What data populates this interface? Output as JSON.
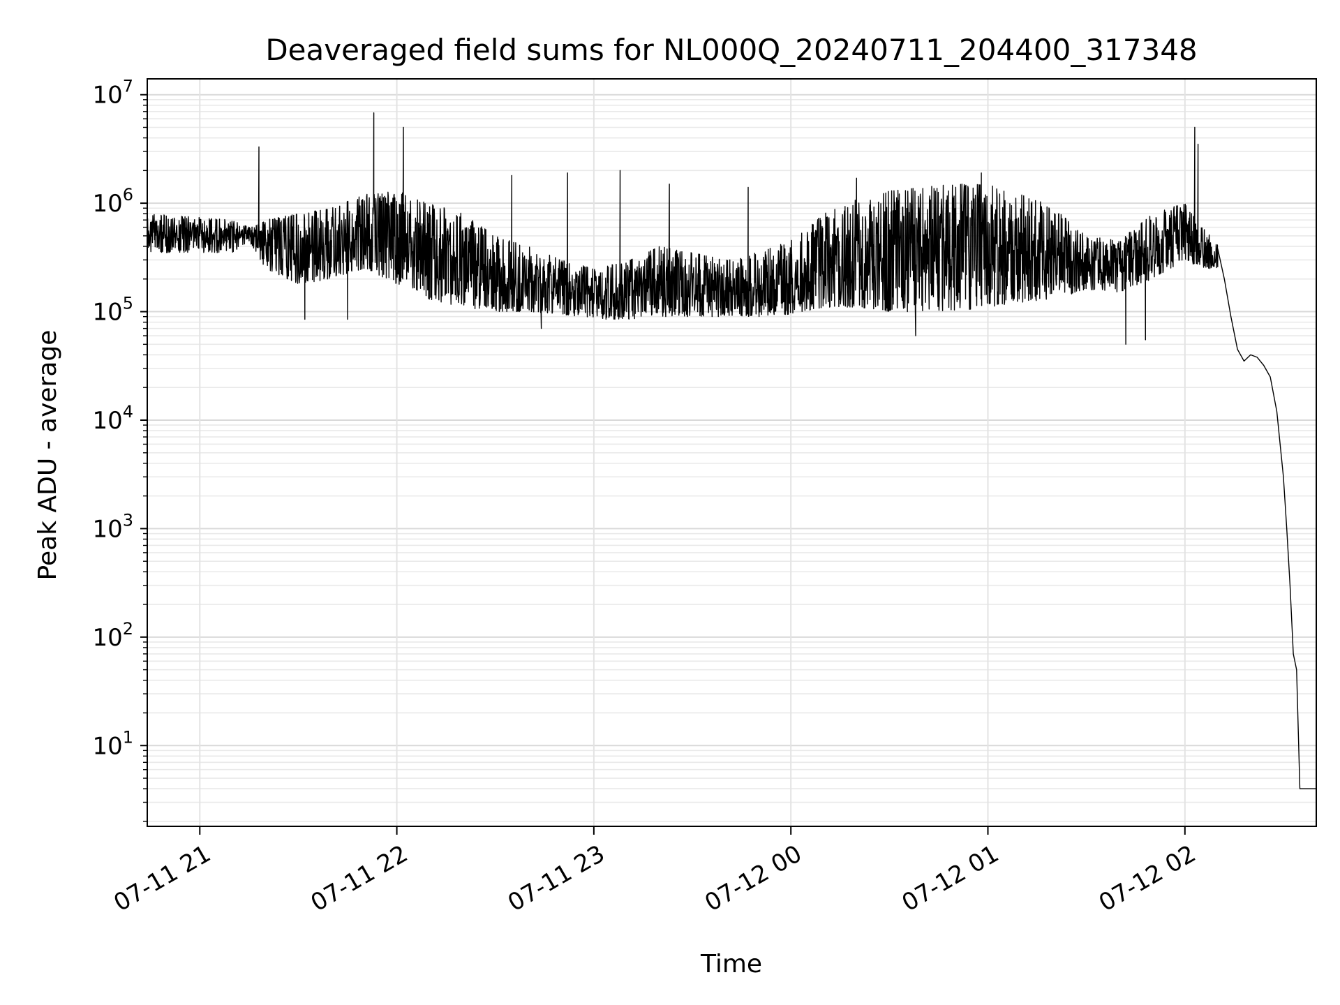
{
  "chart_data": {
    "type": "line",
    "title": "Deaveraged field sums for NL000Q_20240711_204400_317348",
    "xlabel": "Time",
    "ylabel": "Peak ADU - average",
    "yscale": "log",
    "ylim": [
      1.8,
      14000000
    ],
    "xlim": [
      "2024-07-11T20:44:00",
      "2024-07-12T02:40:00"
    ],
    "x_ticks": [
      {
        "t": "2024-07-11T21:00",
        "label": "07-11 21"
      },
      {
        "t": "2024-07-11T22:00",
        "label": "07-11 22"
      },
      {
        "t": "2024-07-11T23:00",
        "label": "07-11 23"
      },
      {
        "t": "2024-07-12T00:00",
        "label": "07-12 00"
      },
      {
        "t": "2024-07-12T01:00",
        "label": "07-12 01"
      },
      {
        "t": "2024-07-12T02:00",
        "label": "07-12 02"
      }
    ],
    "y_ticks": [
      {
        "value": 10,
        "base": "10",
        "exp": "1"
      },
      {
        "value": 100,
        "base": "10",
        "exp": "2"
      },
      {
        "value": 1000,
        "base": "10",
        "exp": "3"
      },
      {
        "value": 10000,
        "base": "10",
        "exp": "4"
      },
      {
        "value": 100000,
        "base": "10",
        "exp": "5"
      },
      {
        "value": 1000000,
        "base": "10",
        "exp": "6"
      },
      {
        "value": 10000000,
        "base": "10",
        "exp": "7"
      }
    ],
    "grid": true,
    "line_color": "#000000",
    "series": [
      {
        "envelope": [
          {
            "t": "2024-07-11T20:44",
            "lo": 350000,
            "hi": 800000
          },
          {
            "t": "2024-07-11T21:10",
            "lo": 350000,
            "hi": 700000
          },
          {
            "t": "2024-07-11T21:15",
            "lo": 450000,
            "hi": 600000
          },
          {
            "t": "2024-07-11T21:20",
            "lo": 250000,
            "hi": 700000
          },
          {
            "t": "2024-07-11T21:30",
            "lo": 180000,
            "hi": 800000
          },
          {
            "t": "2024-07-11T21:40",
            "lo": 200000,
            "hi": 900000
          },
          {
            "t": "2024-07-11T21:50",
            "lo": 250000,
            "hi": 1200000
          },
          {
            "t": "2024-07-11T22:00",
            "lo": 180000,
            "hi": 1300000
          },
          {
            "t": "2024-07-11T22:10",
            "lo": 130000,
            "hi": 1000000
          },
          {
            "t": "2024-07-11T22:20",
            "lo": 110000,
            "hi": 800000
          },
          {
            "t": "2024-07-11T22:30",
            "lo": 100000,
            "hi": 500000
          },
          {
            "t": "2024-07-11T22:40",
            "lo": 100000,
            "hi": 400000
          },
          {
            "t": "2024-07-11T22:50",
            "lo": 95000,
            "hi": 300000
          },
          {
            "t": "2024-07-11T23:00",
            "lo": 85000,
            "hi": 250000
          },
          {
            "t": "2024-07-11T23:10",
            "lo": 85000,
            "hi": 300000
          },
          {
            "t": "2024-07-11T23:20",
            "lo": 90000,
            "hi": 400000
          },
          {
            "t": "2024-07-11T23:30",
            "lo": 90000,
            "hi": 350000
          },
          {
            "t": "2024-07-11T23:40",
            "lo": 90000,
            "hi": 300000
          },
          {
            "t": "2024-07-11T23:50",
            "lo": 90000,
            "hi": 350000
          },
          {
            "t": "2024-07-12T00:00",
            "lo": 95000,
            "hi": 450000
          },
          {
            "t": "2024-07-12T00:10",
            "lo": 110000,
            "hi": 800000
          },
          {
            "t": "2024-07-12T00:20",
            "lo": 110000,
            "hi": 1100000
          },
          {
            "t": "2024-07-12T00:30",
            "lo": 100000,
            "hi": 1300000
          },
          {
            "t": "2024-07-12T00:40",
            "lo": 100000,
            "hi": 1400000
          },
          {
            "t": "2024-07-12T00:50",
            "lo": 100000,
            "hi": 1500000
          },
          {
            "t": "2024-07-12T01:00",
            "lo": 110000,
            "hi": 1500000
          },
          {
            "t": "2024-07-12T01:10",
            "lo": 120000,
            "hi": 1300000
          },
          {
            "t": "2024-07-12T01:20",
            "lo": 130000,
            "hi": 900000
          },
          {
            "t": "2024-07-12T01:30",
            "lo": 160000,
            "hi": 500000
          },
          {
            "t": "2024-07-12T01:40",
            "lo": 150000,
            "hi": 450000
          },
          {
            "t": "2024-07-12T01:50",
            "lo": 200000,
            "hi": 800000
          },
          {
            "t": "2024-07-12T02:00",
            "lo": 300000,
            "hi": 1000000
          },
          {
            "t": "2024-07-12T02:05",
            "lo": 250000,
            "hi": 600000
          },
          {
            "t": "2024-07-12T02:10",
            "lo": 250000,
            "hi": 450000
          }
        ],
        "spikes": [
          {
            "t": "2024-07-11T21:18",
            "v": 3300000
          },
          {
            "t": "2024-07-11T21:32",
            "v": 85000
          },
          {
            "t": "2024-07-11T21:45",
            "v": 85000
          },
          {
            "t": "2024-07-11T21:53",
            "v": 6800000
          },
          {
            "t": "2024-07-11T22:02",
            "v": 5000000
          },
          {
            "t": "2024-07-11T22:35",
            "v": 1800000
          },
          {
            "t": "2024-07-11T22:44",
            "v": 70000
          },
          {
            "t": "2024-07-11T22:52",
            "v": 1900000
          },
          {
            "t": "2024-07-11T23:08",
            "v": 2000000
          },
          {
            "t": "2024-07-11T23:23",
            "v": 1500000
          },
          {
            "t": "2024-07-11T23:47",
            "v": 1400000
          },
          {
            "t": "2024-07-12T00:20",
            "v": 1700000
          },
          {
            "t": "2024-07-12T00:38",
            "v": 60000
          },
          {
            "t": "2024-07-12T00:58",
            "v": 1900000
          },
          {
            "t": "2024-07-12T01:42",
            "v": 50000
          },
          {
            "t": "2024-07-12T01:48",
            "v": 55000
          },
          {
            "t": "2024-07-12T02:03",
            "v": 5000000
          },
          {
            "t": "2024-07-12T02:04",
            "v": 3500000
          }
        ],
        "decay": [
          {
            "t": "2024-07-12T02:10",
            "v": 380000
          },
          {
            "t": "2024-07-12T02:12",
            "v": 200000
          },
          {
            "t": "2024-07-12T02:14",
            "v": 90000
          },
          {
            "t": "2024-07-12T02:16",
            "v": 45000
          },
          {
            "t": "2024-07-12T02:18",
            "v": 35000
          },
          {
            "t": "2024-07-12T02:20",
            "v": 40000
          },
          {
            "t": "2024-07-12T02:22",
            "v": 38000
          },
          {
            "t": "2024-07-12T02:24",
            "v": 32000
          },
          {
            "t": "2024-07-12T02:26",
            "v": 25000
          },
          {
            "t": "2024-07-12T02:28",
            "v": 12000
          },
          {
            "t": "2024-07-12T02:30",
            "v": 3000
          },
          {
            "t": "2024-07-12T02:31",
            "v": 1000
          },
          {
            "t": "2024-07-12T02:32",
            "v": 300
          },
          {
            "t": "2024-07-12T02:33",
            "v": 70
          },
          {
            "t": "2024-07-12T02:34",
            "v": 50
          },
          {
            "t": "2024-07-12T02:35",
            "v": 4
          },
          {
            "t": "2024-07-12T02:40",
            "v": 4
          }
        ]
      }
    ]
  }
}
